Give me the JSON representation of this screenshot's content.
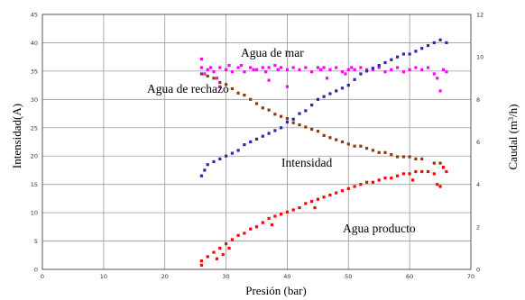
{
  "chart_data": {
    "type": "scatter",
    "xlabel": "Presión (bar)",
    "ylabel_left": "Intensidad(A)",
    "ylabel_right_base": "Caudal (m",
    "ylabel_right_sup": "3",
    "ylabel_right_tail": "/h)",
    "xlim": [
      0,
      70
    ],
    "ylim_left": [
      0,
      45
    ],
    "ylim_right": [
      0,
      12
    ],
    "xticks": [
      "0",
      "10",
      "20",
      "30",
      "40",
      "50",
      "60",
      "70"
    ],
    "yticks_left": [
      "0",
      "5",
      "10",
      "15",
      "20",
      "25",
      "30",
      "35",
      "40",
      "45"
    ],
    "yticks_right": [
      "0",
      "2",
      "4",
      "6",
      "8",
      "10",
      "12"
    ],
    "grid": true,
    "annotations": [
      {
        "id": "mar",
        "text": "Agua de mar"
      },
      {
        "id": "rechazo",
        "text": "Agua de rechazo"
      },
      {
        "id": "intensidad",
        "text": "Intensidad"
      },
      {
        "id": "producto",
        "text": "Agua producto"
      }
    ],
    "series": [
      {
        "key": "agua_de_mar",
        "axis": "right",
        "color": "#ff00ff",
        "marker": "square",
        "points": [
          [
            26,
            9.9
          ],
          [
            26,
            9.5
          ],
          [
            26.5,
            9.2
          ],
          [
            27,
            9.4
          ],
          [
            27.5,
            9.5
          ],
          [
            28,
            9.3
          ],
          [
            28.5,
            9.0
          ],
          [
            29,
            9.5
          ],
          [
            29,
            8.6
          ],
          [
            30,
            9.4
          ],
          [
            30.5,
            9.6
          ],
          [
            31,
            9.3
          ],
          [
            32,
            9.5
          ],
          [
            32.5,
            9.6
          ],
          [
            33,
            9.3
          ],
          [
            34,
            9.5
          ],
          [
            34.5,
            9.4
          ],
          [
            35,
            9.4
          ],
          [
            36,
            9.5
          ],
          [
            36.5,
            9.3
          ],
          [
            37,
            9.5
          ],
          [
            37,
            8.9
          ],
          [
            38,
            9.6
          ],
          [
            38.5,
            9.4
          ],
          [
            39,
            9.5
          ],
          [
            40,
            9.4
          ],
          [
            40,
            8.6
          ],
          [
            41,
            9.5
          ],
          [
            42,
            9.4
          ],
          [
            43,
            9.5
          ],
          [
            44,
            9.3
          ],
          [
            45,
            9.5
          ],
          [
            45.5,
            9.4
          ],
          [
            46,
            9.5
          ],
          [
            46.5,
            9.0
          ],
          [
            47,
            9.4
          ],
          [
            48,
            9.5
          ],
          [
            49,
            9.3
          ],
          [
            49.5,
            9.2
          ],
          [
            50,
            9.4
          ],
          [
            50.5,
            9.5
          ],
          [
            51,
            9.4
          ],
          [
            52,
            9.5
          ],
          [
            53,
            9.4
          ],
          [
            54,
            9.4
          ],
          [
            55,
            9.5
          ],
          [
            56,
            9.3
          ],
          [
            57,
            9.4
          ],
          [
            58,
            9.5
          ],
          [
            59,
            9.3
          ],
          [
            60,
            9.4
          ],
          [
            61,
            9.5
          ],
          [
            62,
            9.4
          ],
          [
            63,
            9.5
          ],
          [
            64,
            9.2
          ],
          [
            64.5,
            9.0
          ],
          [
            65,
            8.4
          ],
          [
            65.5,
            9.4
          ],
          [
            66,
            9.3
          ]
        ]
      },
      {
        "key": "agua_de_rechazo",
        "axis": "right",
        "color": "#8b3a0e",
        "marker": "square",
        "points": [
          [
            26,
            9.2
          ],
          [
            27,
            9.1
          ],
          [
            28,
            9.0
          ],
          [
            29,
            8.8
          ],
          [
            30,
            8.7
          ],
          [
            31,
            8.5
          ],
          [
            32,
            8.3
          ],
          [
            33,
            8.2
          ],
          [
            34,
            8.0
          ],
          [
            35,
            7.8
          ],
          [
            36,
            7.6
          ],
          [
            37,
            7.5
          ],
          [
            38,
            7.3
          ],
          [
            39,
            7.2
          ],
          [
            40,
            7.1
          ],
          [
            41,
            6.9
          ],
          [
            42,
            6.8
          ],
          [
            43,
            6.7
          ],
          [
            44,
            6.6
          ],
          [
            45,
            6.5
          ],
          [
            46,
            6.3
          ],
          [
            47,
            6.2
          ],
          [
            48,
            6.1
          ],
          [
            49,
            6.0
          ],
          [
            50,
            5.9
          ],
          [
            51,
            5.8
          ],
          [
            52,
            5.8
          ],
          [
            53,
            5.7
          ],
          [
            54,
            5.6
          ],
          [
            55,
            5.5
          ],
          [
            56,
            5.5
          ],
          [
            57,
            5.4
          ],
          [
            58,
            5.3
          ],
          [
            59,
            5.3
          ],
          [
            60,
            5.3
          ],
          [
            61,
            5.2
          ],
          [
            62,
            5.2
          ],
          [
            64,
            5.0
          ],
          [
            65,
            5.0
          ],
          [
            65.5,
            4.8
          ]
        ]
      },
      {
        "key": "intensidad",
        "axis": "left",
        "color": "#2a2aa8",
        "marker": "square",
        "points": [
          [
            26,
            16.5
          ],
          [
            26.5,
            17.5
          ],
          [
            27,
            18.5
          ],
          [
            28,
            19.0
          ],
          [
            29,
            19.5
          ],
          [
            30,
            20.0
          ],
          [
            31,
            20.5
          ],
          [
            32,
            21.0
          ],
          [
            33,
            22.0
          ],
          [
            34,
            22.5
          ],
          [
            35,
            23.0
          ],
          [
            36,
            23.5
          ],
          [
            37,
            24.0
          ],
          [
            38,
            24.5
          ],
          [
            39,
            25.0
          ],
          [
            40,
            26.0
          ],
          [
            41,
            26.5
          ],
          [
            42,
            27.5
          ],
          [
            43,
            28.0
          ],
          [
            44,
            29.0
          ],
          [
            45,
            30.0
          ],
          [
            46,
            30.5
          ],
          [
            47,
            31.0
          ],
          [
            48,
            31.5
          ],
          [
            49,
            32.0
          ],
          [
            50,
            32.5
          ],
          [
            51,
            33.5
          ],
          [
            52,
            34.5
          ],
          [
            53,
            35.0
          ],
          [
            54,
            35.5
          ],
          [
            55,
            36.0
          ],
          [
            56,
            36.5
          ],
          [
            57,
            37.0
          ],
          [
            58,
            37.5
          ],
          [
            59,
            38.0
          ],
          [
            60,
            38.0
          ],
          [
            61,
            38.5
          ],
          [
            62,
            39.0
          ],
          [
            63,
            39.5
          ],
          [
            64,
            40.0
          ],
          [
            65,
            40.5
          ],
          [
            66,
            40.0
          ]
        ]
      },
      {
        "key": "agua_producto",
        "axis": "right",
        "color": "#ff0000",
        "marker": "square",
        "points": [
          [
            26,
            0.4
          ],
          [
            26,
            0.2
          ],
          [
            27,
            0.6
          ],
          [
            28,
            0.8
          ],
          [
            28.5,
            0.5
          ],
          [
            29,
            1.0
          ],
          [
            29.5,
            0.7
          ],
          [
            30,
            1.2
          ],
          [
            30.5,
            1.0
          ],
          [
            31,
            1.4
          ],
          [
            32,
            1.6
          ],
          [
            33,
            1.7
          ],
          [
            34,
            1.9
          ],
          [
            35,
            2.0
          ],
          [
            36,
            2.2
          ],
          [
            37,
            2.4
          ],
          [
            37.5,
            2.1
          ],
          [
            38,
            2.5
          ],
          [
            39,
            2.6
          ],
          [
            40,
            2.7
          ],
          [
            41,
            2.8
          ],
          [
            42,
            2.9
          ],
          [
            43,
            3.1
          ],
          [
            44,
            3.2
          ],
          [
            44.5,
            2.9
          ],
          [
            45,
            3.3
          ],
          [
            46,
            3.4
          ],
          [
            47,
            3.5
          ],
          [
            48,
            3.6
          ],
          [
            49,
            3.7
          ],
          [
            50,
            3.8
          ],
          [
            51,
            3.9
          ],
          [
            52,
            4.0
          ],
          [
            53,
            4.1
          ],
          [
            54,
            4.1
          ],
          [
            55,
            4.2
          ],
          [
            56,
            4.3
          ],
          [
            57,
            4.3
          ],
          [
            58,
            4.4
          ],
          [
            59,
            4.5
          ],
          [
            60,
            4.5
          ],
          [
            60.5,
            4.2
          ],
          [
            61,
            4.6
          ],
          [
            62,
            4.6
          ],
          [
            63,
            4.6
          ],
          [
            64,
            4.5
          ],
          [
            64.5,
            4.0
          ],
          [
            65,
            3.9
          ],
          [
            65.5,
            4.8
          ],
          [
            66,
            4.6
          ]
        ]
      }
    ]
  }
}
